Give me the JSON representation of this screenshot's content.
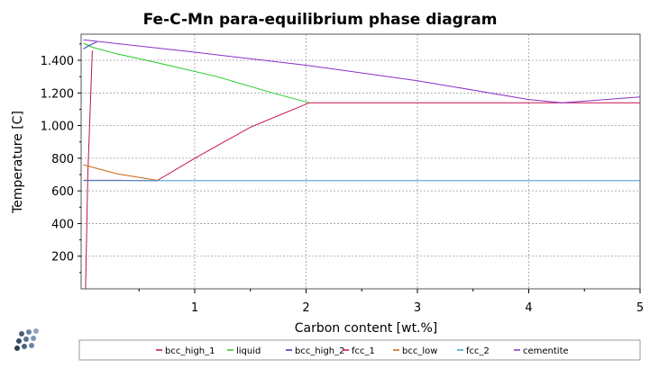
{
  "chart_data": {
    "type": "line",
    "title": "Fe-C-Mn para-equilibrium phase diagram",
    "xlabel": "Carbon content [wt.%]",
    "ylabel": "Temperature [C]",
    "xlim": [
      -0.02,
      5
    ],
    "ylim": [
      0,
      1560
    ],
    "x_ticks": [
      1,
      2,
      3,
      4,
      5
    ],
    "x_tick_labels": [
      "1",
      "2",
      "3",
      "4",
      "5"
    ],
    "y_ticks": [
      200,
      400,
      600,
      800,
      1000,
      1200,
      1400
    ],
    "y_tick_labels": [
      "200",
      "400",
      "600",
      "800",
      "1.000",
      "1.200",
      "1.400"
    ],
    "grid": true,
    "legend_position": "bottom",
    "series": [
      {
        "name": "bcc_high_1",
        "color": "#c0143c",
        "x": [
          0.02,
          0.04,
          0.08
        ],
        "y": [
          0,
          700,
          1460
        ]
      },
      {
        "name": "liquid",
        "color": "#22cc22",
        "x": [
          0.0,
          0.08,
          0.3,
          0.7,
          1.2,
          1.7,
          2.03
        ],
        "y": [
          1505,
          1480,
          1440,
          1380,
          1300,
          1200,
          1140
        ]
      },
      {
        "name": "bcc_high_2",
        "color": "#3333bb",
        "x": [
          0.0,
          0.05,
          0.12
        ],
        "y": [
          1470,
          1490,
          1512
        ]
      },
      {
        "name": "fcc_1",
        "color": "#c8104e",
        "x": [
          0.0,
          0.3,
          0.66,
          1.0,
          1.5,
          2.03,
          3.0,
          4.3,
          5.0
        ],
        "y": [
          665,
          665,
          662,
          800,
          990,
          1140,
          1140,
          1140,
          1140
        ]
      },
      {
        "name": "bcc_low",
        "color": "#cc6611",
        "x": [
          0.0,
          0.3,
          0.66
        ],
        "y": [
          760,
          705,
          665
        ]
      },
      {
        "name": "fcc_2",
        "color": "#3f9bd6",
        "x": [
          0.0,
          1.0,
          2.0,
          3.0,
          4.0,
          5.0
        ],
        "y": [
          663,
          663,
          663,
          663,
          663,
          663
        ]
      },
      {
        "name": "cementite",
        "color": "#8a2fc7",
        "x": [
          0.0,
          1.0,
          2.0,
          3.0,
          4.0,
          4.3,
          5.0
        ],
        "y": [
          1525,
          1450,
          1370,
          1275,
          1160,
          1140,
          1175
        ]
      }
    ]
  }
}
